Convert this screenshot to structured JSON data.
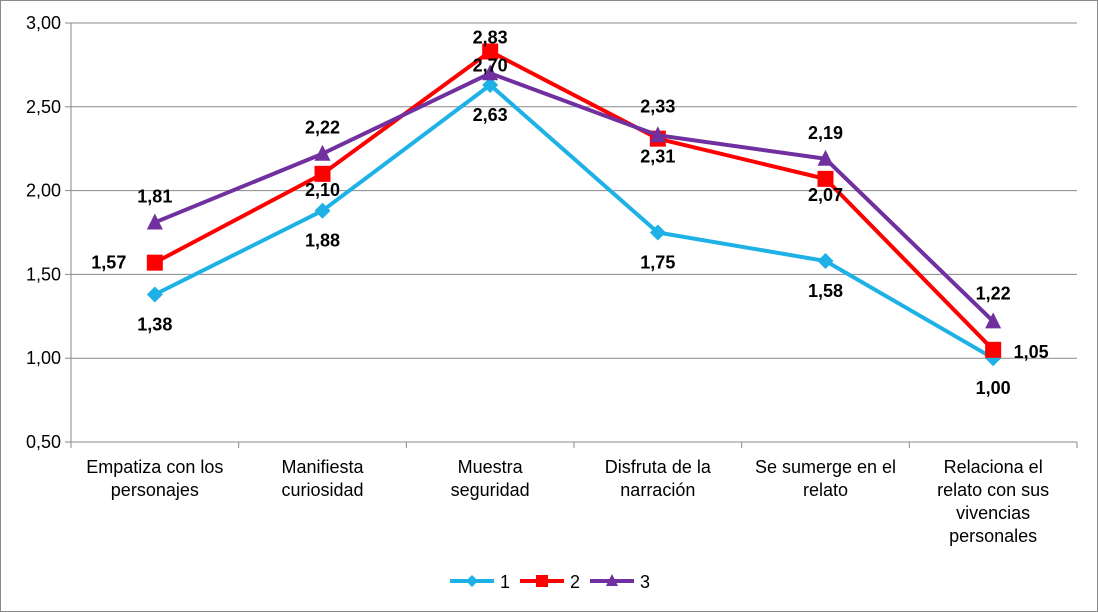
{
  "chart_data": {
    "type": "line",
    "title": "",
    "xlabel": "",
    "ylabel": "",
    "ylim": [
      0.5,
      3.0
    ],
    "yticks": [
      "0,50",
      "1,00",
      "1,50",
      "2,00",
      "2,50",
      "3,00"
    ],
    "ytick_values": [
      0.5,
      1.0,
      1.5,
      2.0,
      2.5,
      3.0
    ],
    "grid": true,
    "legend_position": "bottom",
    "categories": [
      [
        "Empatiza con los",
        "personajes"
      ],
      [
        "Manifiesta",
        "curiosidad"
      ],
      [
        "Muestra",
        "seguridad"
      ],
      [
        "Disfruta de la",
        "narración"
      ],
      [
        "Se sumerge en el",
        "relato"
      ],
      [
        "Relaciona el",
        "relato con sus",
        "vivencias",
        "personales"
      ]
    ],
    "series": [
      {
        "name": "1",
        "color": "#1EB1E6",
        "marker": "diamond",
        "values": [
          1.38,
          1.88,
          2.63,
          1.75,
          1.58,
          1.0
        ],
        "labels": [
          "1,38",
          "1,88",
          "2,63",
          "1,75",
          "1,58",
          "1,00"
        ]
      },
      {
        "name": "2",
        "color": "#FF0000",
        "marker": "square",
        "values": [
          1.57,
          2.1,
          2.83,
          2.31,
          2.07,
          1.05
        ],
        "labels": [
          "1,57",
          "2,10",
          "2,83",
          "2,31",
          "2,07",
          "1,05"
        ]
      },
      {
        "name": "3",
        "color": "#7030A0",
        "marker": "triangle",
        "values": [
          1.81,
          2.22,
          2.7,
          2.33,
          2.19,
          1.22
        ],
        "labels": [
          "1,81",
          "2,22",
          "2,70",
          "2,33",
          "2,19",
          "1,22"
        ]
      }
    ]
  }
}
